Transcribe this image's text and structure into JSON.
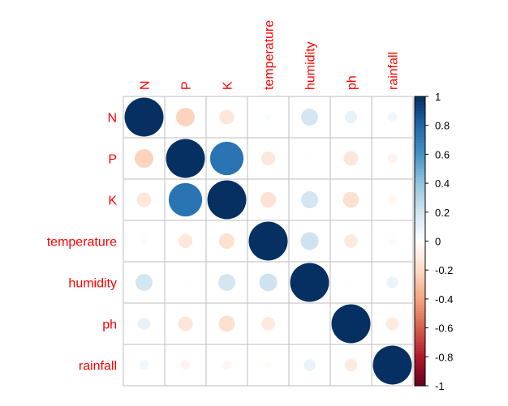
{
  "chart_data": {
    "type": "heatmap",
    "variables": [
      "N",
      "P",
      "K",
      "temperature",
      "humidity",
      "ph",
      "rainfall"
    ],
    "matrix": [
      [
        1.0,
        -0.23,
        -0.14,
        0.03,
        0.19,
        0.1,
        0.06
      ],
      [
        -0.23,
        1.0,
        0.74,
        -0.13,
        -0.01,
        -0.14,
        -0.06
      ],
      [
        -0.14,
        0.74,
        1.0,
        -0.16,
        0.19,
        -0.17,
        -0.05
      ],
      [
        0.03,
        -0.13,
        -0.16,
        1.0,
        0.21,
        -0.12,
        -0.03
      ],
      [
        0.19,
        -0.01,
        0.19,
        0.21,
        1.0,
        -0.01,
        0.09
      ],
      [
        0.1,
        -0.14,
        -0.17,
        -0.12,
        -0.01,
        1.0,
        -0.11
      ],
      [
        0.06,
        -0.06,
        -0.05,
        -0.03,
        0.09,
        -0.11,
        1.0
      ]
    ],
    "colorbar": {
      "range": [
        -1,
        1
      ],
      "ticks": [
        "1",
        "0.8",
        "0.6",
        "0.4",
        "0.2",
        "0",
        "-0.2",
        "-0.4",
        "-0.6",
        "-0.8",
        "-1"
      ]
    },
    "colors": {
      "label": "#ff0000",
      "grid": "#bebebe",
      "negative_strong": "#67001f",
      "neutral": "#ffffff",
      "positive_strong": "#053061"
    }
  }
}
